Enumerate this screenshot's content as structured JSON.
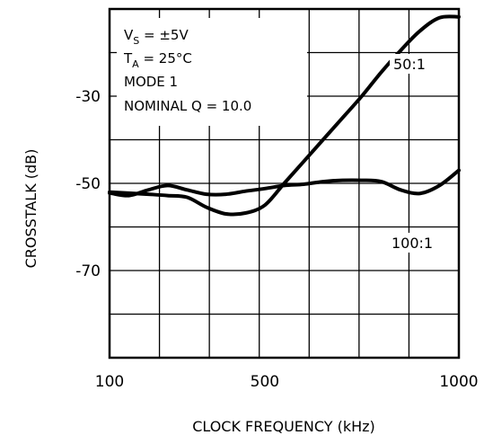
{
  "chart_data": {
    "type": "line",
    "title": "",
    "xlabel": "CLOCK FREQUENCY (kHz)",
    "ylabel": "CROSSTALK (dB)",
    "xlim": [
      100,
      1000
    ],
    "ylim": [
      -90,
      -10
    ],
    "x_tick_labels": [
      {
        "value": 100,
        "label": "100"
      },
      {
        "value": 500,
        "label": "500"
      },
      {
        "value": 1000,
        "label": "1000"
      }
    ],
    "y_tick_labels": [
      {
        "value": -30,
        "label": "-30"
      },
      {
        "value": -50,
        "label": "-50"
      },
      {
        "value": -70,
        "label": "-70"
      }
    ],
    "grid": true,
    "conditions": [
      {
        "text": "V",
        "sub": "S",
        "rest": " = ±5V"
      },
      {
        "text": "T",
        "sub": "A",
        "rest": " = 25°C"
      },
      {
        "text": "MODE 1",
        "sub": "",
        "rest": ""
      },
      {
        "text": "NOMINAL Q = 10.0",
        "sub": "",
        "rest": ""
      }
    ],
    "series": [
      {
        "name": "50:1",
        "x": [
          100,
          200,
          250,
          300,
          350,
          400,
          450,
          500,
          550,
          600,
          650,
          700,
          750,
          800,
          850,
          900,
          950,
          1000
        ],
        "y": [
          -52,
          -52.5,
          -52.8,
          -53.2,
          -55.5,
          -57,
          -56.8,
          -55,
          -50,
          -45,
          -40,
          -35,
          -30,
          -24.5,
          -19.5,
          -15,
          -12,
          -11.8
        ]
      },
      {
        "name": "100:1",
        "x": [
          100,
          150,
          200,
          250,
          300,
          350,
          400,
          450,
          500,
          550,
          600,
          650,
          700,
          750,
          800,
          850,
          900,
          950,
          1000
        ],
        "y": [
          -52.2,
          -52.8,
          -51.5,
          -50.5,
          -51.5,
          -52.5,
          -52.5,
          -51.8,
          -51.2,
          -50.5,
          -50.2,
          -49.6,
          -49.3,
          -49.3,
          -49.6,
          -51.5,
          -52.3,
          -50.5,
          -47
        ]
      }
    ]
  }
}
